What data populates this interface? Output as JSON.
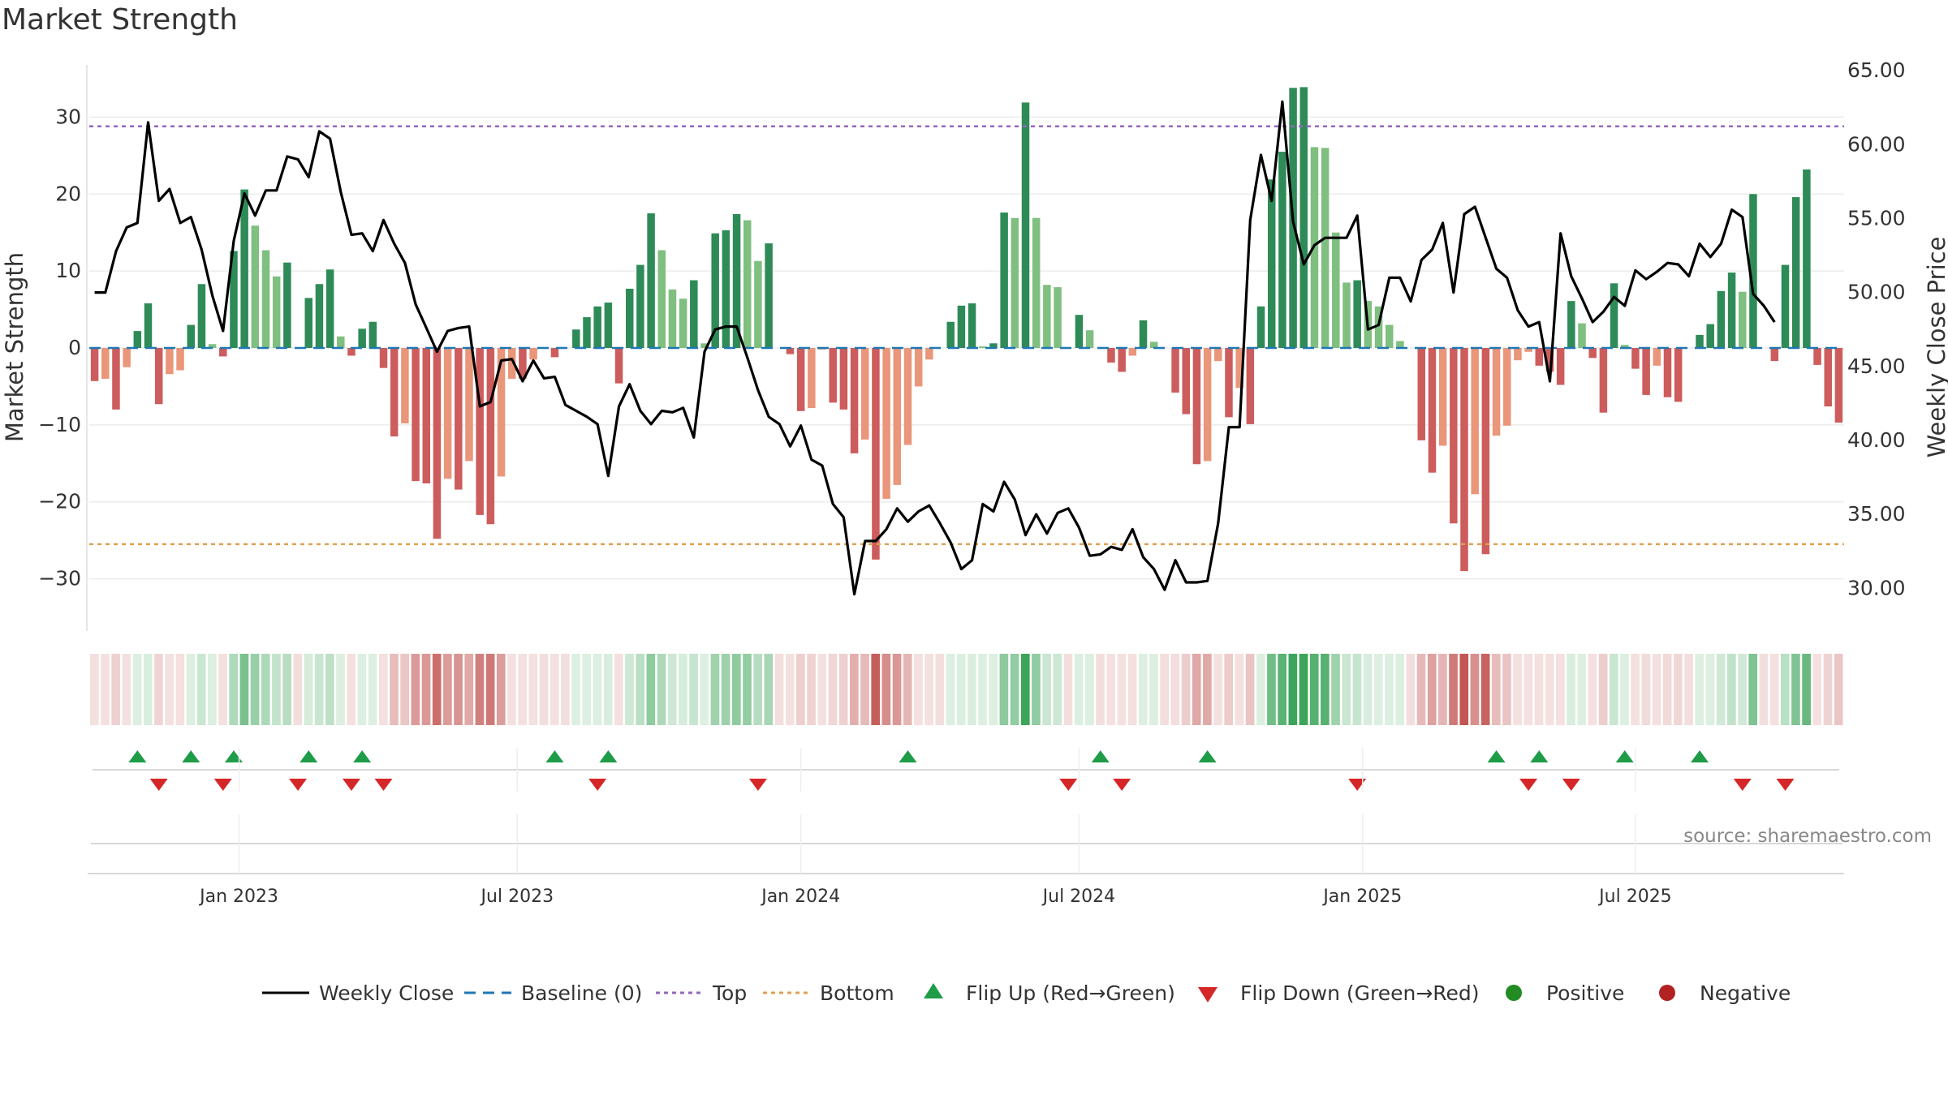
{
  "chart_data": {
    "type": "bar+line",
    "title": "Market Strength",
    "ylabel_left": "Market Strength",
    "ylabel_right": "Weekly Close Price",
    "ylim_left": [
      -37,
      37
    ],
    "ylim_right": [
      27.0,
      65.5
    ],
    "yticks_left": [
      30,
      20,
      10,
      0,
      -10,
      -20,
      -30
    ],
    "yticks_left_labels": [
      "30",
      "20",
      "10",
      "0",
      "−10",
      "−20",
      "−30"
    ],
    "yticks_right": [
      65,
      60,
      55,
      50,
      45,
      40,
      35,
      30
    ],
    "yticks_right_labels": [
      "65.00",
      "60.00",
      "55.00",
      "50.00",
      "45.00",
      "40.00",
      "35.00",
      "30.00"
    ],
    "x_tick_labels": [
      "Jan 2023",
      "Jul 2023",
      "Jan 2024",
      "Jul 2024",
      "Jan 2025",
      "Jul 2025"
    ],
    "x_tick_weeks": [
      14,
      40,
      66.5,
      92.5,
      119,
      144.5
    ],
    "top_level": 28.8,
    "bottom_level": -25.5,
    "baseline": 0,
    "strength": [
      -4.3,
      -4.0,
      -8.0,
      -2.5,
      2.2,
      5.8,
      -7.3,
      -3.4,
      -2.9,
      3.0,
      8.3,
      0.5,
      -1.1,
      12.6,
      20.6,
      15.9,
      12.7,
      9.3,
      11.1,
      0,
      6.5,
      8.3,
      10.2,
      1.5,
      -1.0,
      2.5,
      3.4,
      -2.6,
      -11.5,
      -9.8,
      -17.3,
      -17.6,
      -24.8,
      -17.0,
      -18.4,
      -14.7,
      -21.7,
      -22.9,
      -16.7,
      -4.0,
      -4.0,
      -1.5,
      0,
      -1.2,
      0,
      2.4,
      4.0,
      5.4,
      5.9,
      -4.6,
      7.7,
      10.8,
      17.5,
      12.7,
      7.6,
      6.4,
      8.8,
      0.6,
      14.9,
      15.3,
      17.4,
      16.6,
      11.3,
      13.6,
      0,
      -0.8,
      -8.2,
      -7.8,
      -0.2,
      -7.1,
      -8.0,
      -13.7,
      -11.9,
      -27.5,
      -19.6,
      -17.8,
      -12.6,
      -5.0,
      -1.5,
      0,
      3.4,
      5.5,
      5.8,
      0.2,
      0.6,
      17.6,
      16.9,
      31.9,
      16.9,
      8.2,
      7.9,
      0,
      4.3,
      2.3,
      0,
      -1.9,
      -3.1,
      -1.0,
      3.6,
      0.8,
      0,
      -5.8,
      -8.6,
      -15.1,
      -14.7,
      -1.7,
      -9.0,
      -5.2,
      -9.9,
      5.4,
      21.9,
      25.5,
      33.8,
      33.9,
      26.1,
      26.0,
      15.0,
      8.5,
      8.8,
      6.1,
      5.4,
      3.0,
      0.9,
      0,
      -12.0,
      -16.2,
      -12.7,
      -22.8,
      -29.0,
      -19.0,
      -26.8,
      -11.4,
      -10.1,
      -1.6,
      -0.5,
      -2.3,
      -3.1,
      -4.8,
      6.1,
      3.2,
      -1.3,
      -8.4,
      8.4,
      0.4,
      -2.7,
      -6.1,
      -2.3,
      -6.4,
      -7.0,
      0,
      1.7,
      3.1,
      7.4,
      9.8,
      7.3,
      20.0,
      0,
      -1.7,
      10.8,
      19.6,
      23.2,
      -2.2,
      -7.6,
      -9.7
    ],
    "weekly_close": [
      50.0,
      50.0,
      52.8,
      54.4,
      54.7,
      61.5,
      56.2,
      57.0,
      54.7,
      55.1,
      52.9,
      49.8,
      47.4,
      53.5,
      56.7,
      55.2,
      56.9,
      56.9,
      59.2,
      59.0,
      57.8,
      60.9,
      60.4,
      56.8,
      53.9,
      54.0,
      52.8,
      54.9,
      53.3,
      52.0,
      49.2,
      47.6,
      46.0,
      47.4,
      47.6,
      47.7,
      42.3,
      42.6,
      45.4,
      45.5,
      44.0,
      45.4,
      44.2,
      44.3,
      42.4,
      42.0,
      41.6,
      41.1,
      37.6,
      42.3,
      43.8,
      42.0,
      41.1,
      42.0,
      41.9,
      42.2,
      40.2,
      46.0,
      47.5,
      47.7,
      47.7,
      45.6,
      43.4,
      41.6,
      41.1,
      39.6,
      41.0,
      38.7,
      38.3,
      35.7,
      34.8,
      29.6,
      33.2,
      33.2,
      34.0,
      35.4,
      34.5,
      35.2,
      35.6,
      34.4,
      33.1,
      31.3,
      31.9,
      35.7,
      35.2,
      37.2,
      36.0,
      33.6,
      35.0,
      33.7,
      35.1,
      35.4,
      34.1,
      32.2,
      32.3,
      32.8,
      32.6,
      34.0,
      32.1,
      31.3,
      29.9,
      31.9,
      30.4,
      30.4,
      30.5,
      34.4,
      40.9,
      40.9,
      54.9,
      59.3,
      56.2,
      62.9,
      54.8,
      51.9,
      53.2,
      53.7,
      53.7,
      53.7,
      55.2,
      47.5,
      47.8,
      51.0,
      51.0,
      49.4,
      52.2,
      52.9,
      54.7,
      50.0,
      55.3,
      55.8,
      53.7,
      51.6,
      51.0,
      48.8,
      47.7,
      48.0,
      44.0,
      54.0,
      51.1,
      49.6,
      48.0,
      48.7,
      49.7,
      49.1,
      51.5,
      50.9,
      51.4,
      52.0,
      51.9,
      51.1,
      53.3,
      52.4,
      53.3,
      55.6,
      55.1,
      49.9,
      49.1,
      48.0
    ],
    "flip_up_weeks": [
      4,
      9,
      13,
      20,
      25,
      43,
      48,
      76,
      94,
      104,
      131,
      135,
      143,
      150
    ],
    "flip_down_weeks": [
      6,
      12,
      19,
      24,
      27,
      47,
      62,
      91,
      96,
      118,
      134,
      138,
      154,
      158
    ],
    "source": "source: sharemaestro.com",
    "legend": [
      "Weekly Close",
      "Baseline (0)",
      "Top",
      "Bottom",
      "Flip Up (Red→Green)",
      "Flip Down (Green→Red)",
      "Positive",
      "Negative"
    ],
    "colors": {
      "close": "#000000",
      "baseline": "#1f77b4",
      "top": "#9467bd",
      "bottom": "#e0a050",
      "flip_up": "#1e9c48",
      "flip_down": "#d62728",
      "positive": "#228b22",
      "negative": "#b22222",
      "green_strong": "#2e8b57",
      "green_light": "#7fbf7f",
      "red_strong": "#cd5c5c",
      "red_light": "#e9967a"
    }
  }
}
